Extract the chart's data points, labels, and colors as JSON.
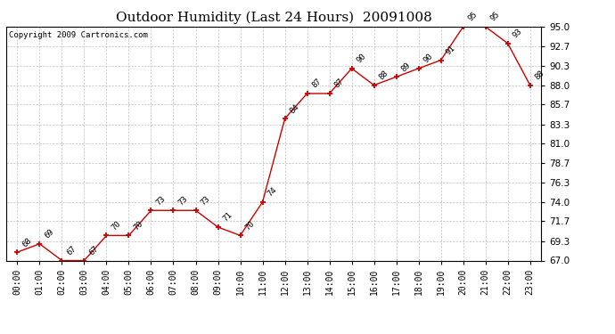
{
  "title": "Outdoor Humidity (Last 24 Hours)  20091008",
  "copyright": "Copyright 2009 Cartronics.com",
  "hours": [
    "00:00",
    "01:00",
    "02:00",
    "03:00",
    "04:00",
    "05:00",
    "06:00",
    "07:00",
    "08:00",
    "09:00",
    "10:00",
    "11:00",
    "12:00",
    "13:00",
    "14:00",
    "15:00",
    "16:00",
    "17:00",
    "18:00",
    "19:00",
    "20:00",
    "21:00",
    "22:00",
    "23:00"
  ],
  "values": [
    68,
    69,
    67,
    67,
    70,
    70,
    73,
    73,
    73,
    71,
    70,
    74,
    84,
    87,
    87,
    90,
    88,
    89,
    90,
    91,
    95,
    95,
    93,
    88
  ],
  "ylim_min": 67.0,
  "ylim_max": 95.0,
  "yticks": [
    67.0,
    69.3,
    71.7,
    74.0,
    76.3,
    78.7,
    81.0,
    83.3,
    85.7,
    88.0,
    90.3,
    92.7,
    95.0
  ],
  "line_color": "#cc0000",
  "marker_color": "#cc0000",
  "bg_color": "#ffffff",
  "grid_color": "#c0c0c0",
  "title_fontsize": 11,
  "label_fontsize": 7,
  "annotation_fontsize": 6.5,
  "copyright_fontsize": 6.5
}
